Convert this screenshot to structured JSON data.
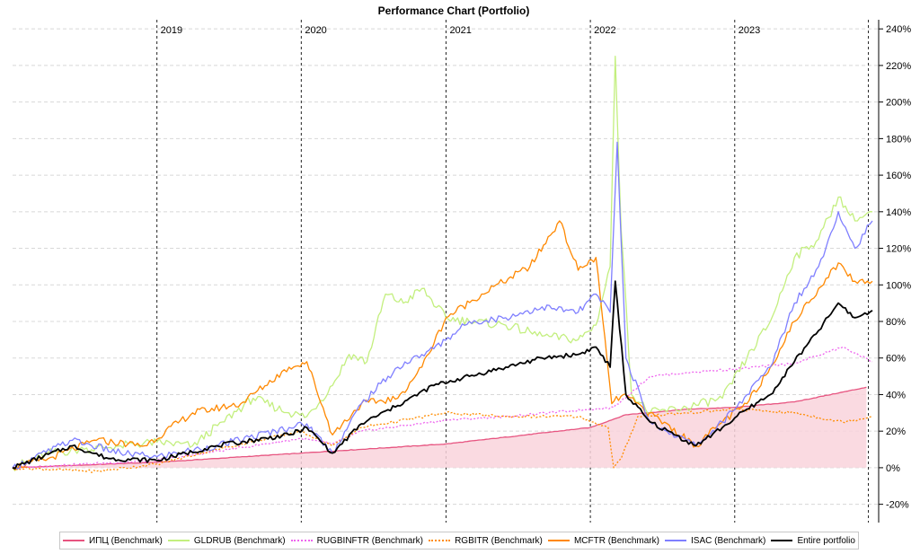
{
  "chart_data": {
    "type": "line",
    "title": "Performance Chart (Portfolio)",
    "xlabel": "",
    "ylabel": "",
    "x_range": [
      "2018-01-01",
      "2023-12-31"
    ],
    "year_labels": [
      "2019",
      "2020",
      "2021",
      "2022",
      "2023"
    ],
    "ylim": [
      -30,
      245
    ],
    "y_ticks": [
      -20,
      0,
      20,
      40,
      60,
      80,
      100,
      120,
      140,
      160,
      180,
      200,
      220,
      240
    ],
    "y_tick_labels": [
      "-20%",
      "0%",
      "20%",
      "40%",
      "60%",
      "80%",
      "100%",
      "120%",
      "140%",
      "160%",
      "180%",
      "200%",
      "220%",
      "240%"
    ],
    "grid": true,
    "legend_position": "bottom",
    "series": [
      {
        "name": "ИПЦ (Benchmark)",
        "color": "#e75480",
        "style": "solid",
        "fill": true,
        "points": [
          [
            "2018-01-01",
            0
          ],
          [
            "2019-01-01",
            3
          ],
          [
            "2020-01-01",
            8
          ],
          [
            "2021-01-01",
            13
          ],
          [
            "2022-01-01",
            22
          ],
          [
            "2022-04-01",
            29
          ],
          [
            "2022-09-01",
            32
          ],
          [
            "2023-01-01",
            33
          ],
          [
            "2023-06-01",
            36
          ],
          [
            "2023-11-30",
            44
          ]
        ]
      },
      {
        "name": "GLDRUB (Benchmark)",
        "color": "#c3ef7e",
        "style": "solid",
        "fill": false,
        "points": [
          [
            "2018-01-01",
            0
          ],
          [
            "2018-04-01",
            8
          ],
          [
            "2018-07-01",
            10
          ],
          [
            "2018-10-01",
            12
          ],
          [
            "2019-01-01",
            14
          ],
          [
            "2019-04-01",
            12
          ],
          [
            "2019-06-15",
            25
          ],
          [
            "2019-09-01",
            38
          ],
          [
            "2019-12-01",
            30
          ],
          [
            "2020-01-15",
            28
          ],
          [
            "2020-03-20",
            45
          ],
          [
            "2020-05-01",
            62
          ],
          [
            "2020-06-15",
            58
          ],
          [
            "2020-08-01",
            95
          ],
          [
            "2020-09-15",
            90
          ],
          [
            "2020-11-01",
            98
          ],
          [
            "2021-01-01",
            82
          ],
          [
            "2021-03-01",
            80
          ],
          [
            "2021-06-01",
            78
          ],
          [
            "2021-09-01",
            72
          ],
          [
            "2021-12-01",
            70
          ],
          [
            "2022-01-15",
            78
          ],
          [
            "2022-02-20",
            110
          ],
          [
            "2022-03-05",
            225
          ],
          [
            "2022-03-20",
            130
          ],
          [
            "2022-04-15",
            40
          ],
          [
            "2022-06-01",
            30
          ],
          [
            "2022-09-01",
            33
          ],
          [
            "2022-12-01",
            38
          ],
          [
            "2023-02-01",
            60
          ],
          [
            "2023-04-01",
            80
          ],
          [
            "2023-06-01",
            115
          ],
          [
            "2023-08-01",
            125
          ],
          [
            "2023-09-20",
            148
          ],
          [
            "2023-11-01",
            135
          ],
          [
            "2023-12-15",
            140
          ]
        ]
      },
      {
        "name": "RUGBINFTR (Benchmark)",
        "color": "#ee66ee",
        "style": "dotted",
        "fill": false,
        "points": [
          [
            "2018-01-01",
            0
          ],
          [
            "2019-01-01",
            4
          ],
          [
            "2020-01-01",
            16
          ],
          [
            "2020-03-20",
            13
          ],
          [
            "2020-06-01",
            20
          ],
          [
            "2021-01-01",
            26
          ],
          [
            "2021-06-01",
            28
          ],
          [
            "2022-01-01",
            32
          ],
          [
            "2022-03-01",
            33
          ],
          [
            "2022-06-01",
            50
          ],
          [
            "2022-09-01",
            52
          ],
          [
            "2023-01-01",
            54
          ],
          [
            "2023-06-01",
            57
          ],
          [
            "2023-10-01",
            66
          ],
          [
            "2023-12-15",
            58
          ]
        ]
      },
      {
        "name": "RGBITR (Benchmark)",
        "color": "#ff8c00",
        "style": "dotted",
        "fill": false,
        "points": [
          [
            "2018-01-01",
            0
          ],
          [
            "2018-08-01",
            -2
          ],
          [
            "2019-01-01",
            2
          ],
          [
            "2019-06-01",
            10
          ],
          [
            "2020-01-01",
            20
          ],
          [
            "2020-03-20",
            12
          ],
          [
            "2020-06-01",
            22
          ],
          [
            "2021-01-01",
            30
          ],
          [
            "2021-06-01",
            28
          ],
          [
            "2021-12-01",
            28
          ],
          [
            "2022-02-15",
            22
          ],
          [
            "2022-03-01",
            0
          ],
          [
            "2022-03-20",
            5
          ],
          [
            "2022-05-01",
            28
          ],
          [
            "2022-09-01",
            30
          ],
          [
            "2023-01-01",
            32
          ],
          [
            "2023-06-01",
            30
          ],
          [
            "2023-10-01",
            25
          ],
          [
            "2023-12-15",
            28
          ]
        ]
      },
      {
        "name": "MCFTR (Benchmark)",
        "color": "#ff8800",
        "style": "solid",
        "fill": false,
        "points": [
          [
            "2018-01-01",
            0
          ],
          [
            "2018-04-01",
            5
          ],
          [
            "2018-08-01",
            15
          ],
          [
            "2018-12-01",
            12
          ],
          [
            "2019-04-01",
            30
          ],
          [
            "2019-08-01",
            35
          ],
          [
            "2019-12-01",
            55
          ],
          [
            "2020-01-15",
            58
          ],
          [
            "2020-03-20",
            18
          ],
          [
            "2020-06-01",
            35
          ],
          [
            "2020-09-01",
            38
          ],
          [
            "2020-11-01",
            55
          ],
          [
            "2021-01-01",
            82
          ],
          [
            "2021-04-01",
            95
          ],
          [
            "2021-08-01",
            110
          ],
          [
            "2021-10-15",
            135
          ],
          [
            "2021-12-01",
            108
          ],
          [
            "2022-01-15",
            115
          ],
          [
            "2022-02-24",
            35
          ],
          [
            "2022-03-25",
            40
          ],
          [
            "2022-06-01",
            30
          ],
          [
            "2022-09-25",
            12
          ],
          [
            "2022-12-01",
            25
          ],
          [
            "2023-02-01",
            35
          ],
          [
            "2023-04-01",
            55
          ],
          [
            "2023-06-01",
            80
          ],
          [
            "2023-08-01",
            98
          ],
          [
            "2023-09-20",
            112
          ],
          [
            "2023-11-01",
            102
          ],
          [
            "2023-12-15",
            102
          ]
        ]
      },
      {
        "name": "ISAC (Benchmark)",
        "color": "#7f7fff",
        "style": "solid",
        "fill": false,
        "points": [
          [
            "2018-01-01",
            0
          ],
          [
            "2018-06-01",
            15
          ],
          [
            "2018-10-01",
            8
          ],
          [
            "2019-01-01",
            6
          ],
          [
            "2019-06-01",
            12
          ],
          [
            "2019-12-01",
            22
          ],
          [
            "2020-01-15",
            24
          ],
          [
            "2020-03-20",
            8
          ],
          [
            "2020-06-01",
            35
          ],
          [
            "2020-09-01",
            55
          ],
          [
            "2020-12-01",
            65
          ],
          [
            "2021-03-01",
            80
          ],
          [
            "2021-06-01",
            82
          ],
          [
            "2021-09-01",
            88
          ],
          [
            "2021-12-01",
            85
          ],
          [
            "2022-01-15",
            95
          ],
          [
            "2022-02-20",
            85
          ],
          [
            "2022-03-10",
            178
          ],
          [
            "2022-04-01",
            60
          ],
          [
            "2022-06-01",
            25
          ],
          [
            "2022-09-25",
            12
          ],
          [
            "2022-12-01",
            25
          ],
          [
            "2023-02-01",
            40
          ],
          [
            "2023-04-01",
            55
          ],
          [
            "2023-06-01",
            90
          ],
          [
            "2023-08-01",
            110
          ],
          [
            "2023-09-20",
            140
          ],
          [
            "2023-11-01",
            120
          ],
          [
            "2023-12-15",
            135
          ]
        ]
      },
      {
        "name": "Entire portfolio",
        "color": "#000000",
        "style": "solid",
        "fill": false,
        "points": [
          [
            "2018-01-01",
            0
          ],
          [
            "2018-06-01",
            12
          ],
          [
            "2018-09-01",
            5
          ],
          [
            "2019-01-01",
            4
          ],
          [
            "2019-06-01",
            12
          ],
          [
            "2019-12-01",
            18
          ],
          [
            "2020-01-15",
            22
          ],
          [
            "2020-03-20",
            8
          ],
          [
            "2020-06-01",
            24
          ],
          [
            "2020-09-01",
            34
          ],
          [
            "2020-12-01",
            45
          ],
          [
            "2021-03-01",
            50
          ],
          [
            "2021-06-01",
            55
          ],
          [
            "2021-09-01",
            60
          ],
          [
            "2021-12-01",
            62
          ],
          [
            "2022-01-15",
            66
          ],
          [
            "2022-02-20",
            55
          ],
          [
            "2022-03-05",
            102
          ],
          [
            "2022-04-01",
            40
          ],
          [
            "2022-06-01",
            25
          ],
          [
            "2022-09-25",
            12
          ],
          [
            "2022-12-01",
            22
          ],
          [
            "2023-02-01",
            32
          ],
          [
            "2023-04-01",
            40
          ],
          [
            "2023-06-01",
            58
          ],
          [
            "2023-08-01",
            75
          ],
          [
            "2023-09-20",
            90
          ],
          [
            "2023-11-01",
            82
          ],
          [
            "2023-12-15",
            86
          ]
        ]
      }
    ]
  }
}
